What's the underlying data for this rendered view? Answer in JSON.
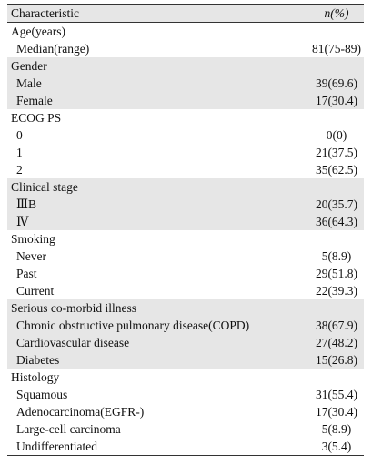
{
  "table": {
    "header": {
      "characteristic": "Characteristic",
      "n": "n(%)"
    },
    "groups": [
      {
        "label": "Age(years)",
        "rows": [
          [
            "Median(range)",
            "81(75-89)"
          ]
        ]
      },
      {
        "label": "Gender",
        "rows": [
          [
            "Male",
            "39(69.6)"
          ],
          [
            "Female",
            "17(30.4)"
          ]
        ]
      },
      {
        "label": "ECOG PS",
        "rows": [
          [
            "0",
            "0(0)"
          ],
          [
            "1",
            "21(37.5)"
          ],
          [
            "2",
            "35(62.5)"
          ]
        ]
      },
      {
        "label": "Clinical stage",
        "rows": [
          [
            "ⅢB",
            "20(35.7)"
          ],
          [
            "Ⅳ",
            "36(64.3)"
          ]
        ]
      },
      {
        "label": "Smoking",
        "rows": [
          [
            "Never",
            "5(8.9)"
          ],
          [
            "Past",
            "29(51.8)"
          ],
          [
            "Current",
            "22(39.3)"
          ]
        ]
      },
      {
        "label": "Serious co-morbid illness",
        "rows": [
          [
            "Chronic obstructive pulmonary disease(COPD)",
            "38(67.9)"
          ],
          [
            "Cardiovascular disease",
            "27(48.2)"
          ],
          [
            "Diabetes",
            "15(26.8)"
          ]
        ]
      },
      {
        "label": "Histology",
        "rows": [
          [
            "Squamous",
            "31(55.4)"
          ],
          [
            "Adenocarcinoma(EGFR-)",
            "17(30.4)"
          ],
          [
            "Large-cell carcinoma",
            "5(8.9)"
          ],
          [
            "Undifferentiated",
            "3(5.4)"
          ]
        ]
      }
    ]
  }
}
